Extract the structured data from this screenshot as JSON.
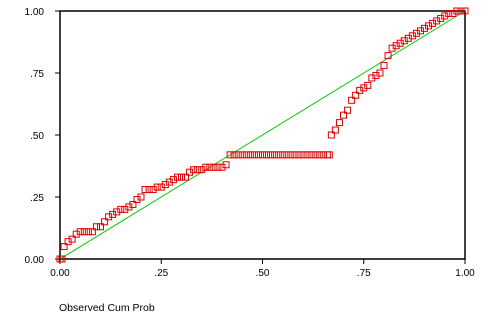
{
  "chart_data": {
    "type": "scatter",
    "title": "",
    "xlabel": "Observed Cum Prob",
    "ylabel": "",
    "xlim": [
      0,
      1
    ],
    "ylim": [
      0,
      1
    ],
    "x_ticks": [
      "0.00",
      ".25",
      ".50",
      ".75",
      "1.00"
    ],
    "y_ticks": [
      "0.00",
      ".25",
      ".50",
      ".75",
      "1.00"
    ],
    "grid": false,
    "reference_line": {
      "from": [
        0,
        0
      ],
      "to": [
        1,
        1
      ],
      "color": "#00cc00"
    },
    "marker": {
      "shape": "square",
      "fill": "none",
      "color": "#dd0000"
    },
    "series": [
      {
        "x": [
          0.0,
          0.005,
          0.01,
          0.02,
          0.03,
          0.04,
          0.05,
          0.06,
          0.07,
          0.08,
          0.09,
          0.1,
          0.11,
          0.12,
          0.13,
          0.14,
          0.15,
          0.16,
          0.17,
          0.18,
          0.19,
          0.2,
          0.21,
          0.22,
          0.23,
          0.24,
          0.25,
          0.26,
          0.27,
          0.28,
          0.29,
          0.3,
          0.31,
          0.32,
          0.33,
          0.34,
          0.35,
          0.36,
          0.37,
          0.38,
          0.39,
          0.4,
          0.41,
          0.42,
          0.43,
          0.44,
          0.45,
          0.46,
          0.47,
          0.48,
          0.49,
          0.5,
          0.51,
          0.52,
          0.53,
          0.54,
          0.55,
          0.56,
          0.57,
          0.58,
          0.59,
          0.6,
          0.61,
          0.62,
          0.63,
          0.64,
          0.65,
          0.66,
          0.665,
          0.67,
          0.68,
          0.69,
          0.7,
          0.71,
          0.72,
          0.73,
          0.74,
          0.75,
          0.76,
          0.77,
          0.78,
          0.79,
          0.8,
          0.81,
          0.82,
          0.83,
          0.84,
          0.85,
          0.86,
          0.87,
          0.88,
          0.89,
          0.9,
          0.91,
          0.92,
          0.93,
          0.94,
          0.95,
          0.96,
          0.97,
          0.98,
          0.99,
          1.0
        ],
        "y": [
          0.0,
          0.0,
          0.05,
          0.07,
          0.08,
          0.1,
          0.11,
          0.11,
          0.11,
          0.11,
          0.13,
          0.13,
          0.15,
          0.17,
          0.18,
          0.19,
          0.2,
          0.2,
          0.21,
          0.22,
          0.24,
          0.25,
          0.28,
          0.28,
          0.28,
          0.29,
          0.29,
          0.3,
          0.31,
          0.32,
          0.33,
          0.33,
          0.33,
          0.35,
          0.36,
          0.36,
          0.36,
          0.37,
          0.37,
          0.37,
          0.37,
          0.37,
          0.38,
          0.42,
          0.42,
          0.42,
          0.42,
          0.42,
          0.42,
          0.42,
          0.42,
          0.42,
          0.42,
          0.42,
          0.42,
          0.42,
          0.42,
          0.42,
          0.42,
          0.42,
          0.42,
          0.42,
          0.42,
          0.42,
          0.42,
          0.42,
          0.42,
          0.42,
          0.42,
          0.5,
          0.52,
          0.55,
          0.58,
          0.6,
          0.64,
          0.66,
          0.68,
          0.69,
          0.7,
          0.73,
          0.74,
          0.75,
          0.78,
          0.82,
          0.85,
          0.86,
          0.87,
          0.88,
          0.89,
          0.9,
          0.91,
          0.92,
          0.93,
          0.94,
          0.95,
          0.96,
          0.97,
          0.98,
          0.99,
          0.99,
          1.0,
          1.0,
          1.0
        ]
      }
    ]
  }
}
